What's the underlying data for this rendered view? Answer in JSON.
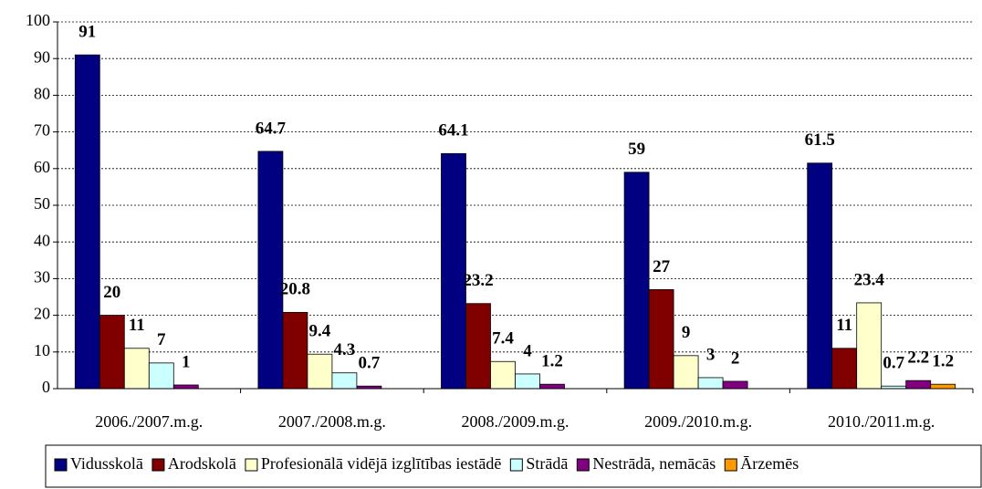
{
  "chart_data": {
    "type": "bar",
    "categories": [
      "2006./2007.m.g.",
      "2007./2008.m.g.",
      "2008./2009.m.g.",
      "2009./2010.m.g.",
      "2010./2011.m.g."
    ],
    "series": [
      {
        "name": "Vidusskolā",
        "color": "#000080",
        "values": [
          91,
          64.7,
          64.1,
          59,
          61.5
        ]
      },
      {
        "name": "Arodskolā",
        "color": "#800000",
        "values": [
          20,
          20.8,
          23.2,
          27,
          11
        ]
      },
      {
        "name": "Profesionālā vidējā izglītības iestādē",
        "color": "#FFFFCC",
        "values": [
          11,
          9.4,
          7.4,
          9,
          23.4
        ]
      },
      {
        "name": "Strādā",
        "color": "#CCFFFF",
        "values": [
          7,
          4.3,
          4,
          3,
          0.7
        ]
      },
      {
        "name": "Nestrādā, nemācās",
        "color": "#800080",
        "values": [
          1,
          0.7,
          1.2,
          2,
          2.2
        ]
      },
      {
        "name": "Ārzemēs",
        "color": "#FF9900",
        "values": [
          null,
          null,
          null,
          null,
          1.2
        ]
      }
    ],
    "ylim": [
      0,
      100
    ],
    "yticks": [
      0,
      10,
      20,
      30,
      40,
      50,
      60,
      70,
      80,
      90,
      100
    ],
    "grid": true,
    "legend": "bottom"
  }
}
